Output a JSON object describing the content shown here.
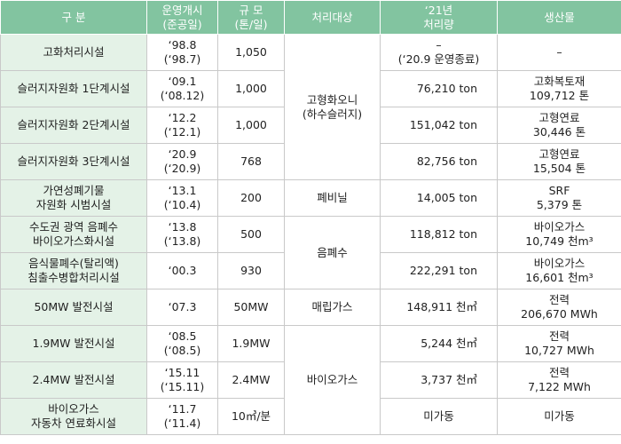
{
  "table": {
    "header": [
      "구 분",
      "운영개시\n(준공일)",
      "규 모\n(톤/일)",
      "처리대상",
      "‘21년\n처리량",
      "생산물"
    ],
    "rows": [
      {
        "facility": "고화처리시설",
        "start": "‘98.8\n(‘98.7)",
        "capacity": "1,050",
        "target": "고형화오니\n(하수슬러지)",
        "amount": "–\n(‘20.9 운영종료)",
        "product": "–"
      },
      {
        "facility": "슬러지자원화 1단계시설",
        "start": "‘09.1\n(‘08.12)",
        "capacity": "1,000",
        "amount": "76,210 ton",
        "product": "고화복토재\n109,712 톤"
      },
      {
        "facility": "슬러지자원화 2단계시설",
        "start": "‘12.2\n(‘12.1)",
        "capacity": "1,000",
        "amount": "151,042 ton",
        "product": "고형연료\n30,446 톤"
      },
      {
        "facility": "슬러지자원화 3단계시설",
        "start": "‘20.9\n(‘20.9)",
        "capacity": "768",
        "amount": "82,756 ton",
        "product": "고형연료\n15,504 톤"
      },
      {
        "facility": "가연성폐기물\n자원화 시범시설",
        "start": "‘13.1\n(‘10.4)",
        "capacity": "200",
        "target": "폐비닐",
        "amount": "14,005 ton",
        "product": "SRF\n5,379 톤"
      },
      {
        "facility": "수도권 광역 음폐수\n바이오가스화시설",
        "start": "‘13.8\n(‘13.8)",
        "capacity": "500",
        "target": "음폐수",
        "amount": "118,812 ton",
        "product": "바이오가스\n10,749 천m³"
      },
      {
        "facility": "음식물폐수(탈리액)\n침출수병합처리시설",
        "start": "‘00.3",
        "capacity": "930",
        "amount": "222,291 ton",
        "product": "바이오가스\n16,601 천m³"
      },
      {
        "facility": "50MW 발전시설",
        "start": "‘07.3",
        "capacity": "50MW",
        "target": "매립가스",
        "amount": "148,911 천㎥",
        "product": "전력\n206,670 MWh"
      },
      {
        "facility": "1.9MW 발전시설",
        "start": "‘08.5\n(‘08.5)",
        "capacity": "1.9MW",
        "target": "바이오가스",
        "amount": "5,244 천㎥",
        "product": "전력\n10,727 MWh"
      },
      {
        "facility": "2.4MW 발전시설",
        "start": "‘15.11\n(‘15.11)",
        "capacity": "2.4MW",
        "amount": "3,737 천㎥",
        "product": "전력\n7,122 MWh"
      },
      {
        "facility": "바이오가스\n자동차 연료화시설",
        "start": "‘11.7\n(‘11.4)",
        "capacity": "10㎥/분",
        "amount": "미가동",
        "product": "미가동"
      }
    ]
  }
}
